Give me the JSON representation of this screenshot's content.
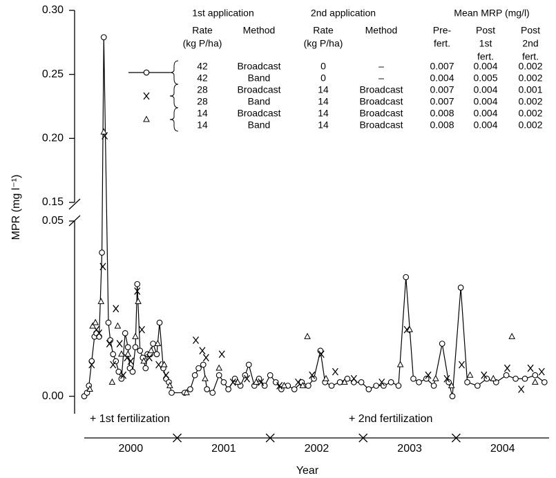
{
  "chart_data": {
    "type": "line",
    "y_label": "MPR (mg l⁻¹)",
    "x_label": "Year",
    "xlim": [
      2000,
      2005
    ],
    "year_segments": [
      "2000",
      "2001",
      "2002",
      "2003",
      "2004"
    ],
    "ylim_segments": [
      [
        -0.005,
        0.05
      ],
      [
        0.15,
        0.3
      ]
    ],
    "yticks": [
      {
        "value": 0.0,
        "label": "0.00"
      },
      {
        "value": 0.05,
        "label": "0.05"
      },
      {
        "value": 0.15,
        "label": "0.15"
      },
      {
        "value": 0.2,
        "label": "0.20"
      },
      {
        "value": 0.25,
        "label": "0.25"
      },
      {
        "value": 0.3,
        "label": "0.30"
      }
    ],
    "annotations": [
      "+ 1st fertilization",
      "+ 2nd fertilization"
    ],
    "legend_table": {
      "groups": [
        "1st application",
        "2nd application",
        "Mean MRP (mg/l)"
      ],
      "columns": [
        [
          "Rate",
          "(kg P/ha)"
        ],
        [
          "Method"
        ],
        [
          "Rate",
          "(kg P/ha)"
        ],
        [
          "Method"
        ],
        [
          "Pre-",
          "fert."
        ],
        [
          "Post",
          "1st",
          "fert."
        ],
        [
          "Post",
          "2nd",
          "fert."
        ]
      ],
      "rows": [
        [
          "42",
          "Broadcast",
          "0",
          "–",
          "0.007",
          "0.004",
          "0.002"
        ],
        [
          "42",
          "Band",
          "0",
          "–",
          "0.004",
          "0.005",
          "0.002"
        ],
        [
          "28",
          "Broadcast",
          "14",
          "Broadcast",
          "0.007",
          "0.004",
          "0.001"
        ],
        [
          "28",
          "Band",
          "14",
          "Broadcast",
          "0.007",
          "0.004",
          "0.002"
        ],
        [
          "14",
          "Broadcast",
          "14",
          "Broadcast",
          "0.008",
          "0.004",
          "0.002"
        ],
        [
          "14",
          "Band",
          "14",
          "Broadcast",
          "0.008",
          "0.004",
          "0.002"
        ]
      ]
    },
    "series": [
      {
        "marker": "circle",
        "line": true,
        "color": "#000000",
        "x": [
          2000.0,
          2000.03,
          2000.05,
          2000.08,
          2000.11,
          2000.13,
          2000.16,
          2000.19,
          2000.21,
          2000.26,
          2000.28,
          2000.31,
          2000.34,
          2000.37,
          2000.4,
          2000.44,
          2000.47,
          2000.49,
          2000.52,
          2000.55,
          2000.57,
          2000.6,
          2000.63,
          2000.66,
          2000.68,
          2000.71,
          2000.74,
          2000.78,
          2000.81,
          2000.85,
          2000.88,
          2000.91,
          2000.94,
          2001.08,
          2001.14,
          2001.19,
          2001.23,
          2001.28,
          2001.32,
          2001.38,
          2001.45,
          2001.5,
          2001.55,
          2001.62,
          2001.68,
          2001.73,
          2001.77,
          2001.83,
          2001.88,
          2001.94,
          2002.0,
          2002.06,
          2002.12,
          2002.19,
          2002.26,
          2002.34,
          2002.41,
          2002.47,
          2002.54,
          2002.59,
          2002.66,
          2002.75,
          2002.83,
          2002.9,
          2002.98,
          2003.06,
          2003.14,
          2003.22,
          2003.3,
          2003.38,
          2003.46,
          2003.54,
          2003.6,
          2003.68,
          2003.76,
          2003.85,
          2003.92,
          2003.96,
          2004.05,
          2004.12,
          2004.23,
          2004.33,
          2004.43,
          2004.54,
          2004.64,
          2004.74,
          2004.85,
          2004.95
        ],
        "values": [
          0.0,
          0.001,
          0.003,
          0.01,
          0.017,
          0.018,
          0.017,
          0.041,
          0.279,
          0.021,
          0.016,
          0.012,
          0.01,
          0.007,
          0.005,
          0.018,
          0.014,
          0.008,
          0.007,
          0.014,
          0.032,
          0.013,
          0.011,
          0.008,
          0.012,
          0.012,
          0.015,
          0.012,
          0.021,
          0.008,
          0.005,
          0.004,
          0.001,
          0.001,
          0.002,
          0.006,
          0.008,
          0.009,
          0.002,
          0.001,
          0.006,
          0.004,
          0.002,
          0.005,
          0.003,
          0.006,
          0.009,
          0.003,
          0.005,
          0.003,
          0.006,
          0.004,
          0.002,
          0.003,
          0.002,
          0.004,
          0.003,
          0.005,
          0.013,
          0.004,
          0.003,
          0.004,
          0.005,
          0.004,
          0.004,
          0.002,
          0.003,
          0.003,
          0.004,
          0.003,
          0.034,
          0.005,
          0.004,
          0.005,
          0.003,
          0.015,
          0.004,
          0.0,
          0.031,
          0.004,
          0.003,
          0.005,
          0.004,
          0.006,
          0.005,
          0.005,
          0.006,
          0.004
        ]
      },
      {
        "marker": "x",
        "color": "#000000",
        "x": [
          2000.08,
          2000.13,
          2000.16,
          2000.2,
          2000.22,
          2000.27,
          2000.31,
          2000.34,
          2000.38,
          2000.42,
          2000.46,
          2000.5,
          2000.57,
          2000.62,
          2000.7,
          2000.8,
          2000.88,
          2001.2,
          2001.27,
          2001.31,
          2001.48,
          2001.6,
          2001.75,
          2001.9,
          2002.1,
          2002.3,
          2002.45,
          2002.55,
          2002.7,
          2002.9,
          2003.2,
          2003.47,
          2003.7,
          2003.9,
          2004.06,
          2004.3,
          2004.55,
          2004.7,
          2004.8,
          2004.92
        ],
        "values": [
          0.009,
          0.019,
          0.018,
          0.037,
          0.202,
          0.015,
          0.009,
          0.025,
          0.015,
          0.006,
          0.011,
          0.01,
          0.03,
          0.019,
          0.011,
          0.009,
          0.006,
          0.016,
          0.013,
          0.011,
          0.012,
          0.004,
          0.005,
          0.004,
          0.003,
          0.004,
          0.006,
          0.012,
          0.007,
          0.005,
          0.004,
          0.019,
          0.006,
          0.005,
          0.009,
          0.006,
          0.008,
          0.002,
          0.008,
          0.007
        ]
      },
      {
        "marker": "triangle",
        "color": "#000000",
        "x": [
          2000.06,
          2000.09,
          2000.12,
          2000.18,
          2000.21,
          2000.3,
          2000.36,
          2000.4,
          2000.47,
          2000.55,
          2000.58,
          2000.64,
          2000.72,
          2000.79,
          2000.86,
          2000.92,
          2001.1,
          2001.3,
          2001.45,
          2001.65,
          2001.85,
          2002.15,
          2002.35,
          2002.4,
          2002.6,
          2002.8,
          2003.4,
          2003.5,
          2003.78,
          2003.95,
          2004.15,
          2004.4,
          2004.6,
          2004.85
        ],
        "values": [
          0.002,
          0.02,
          0.021,
          0.027,
          0.205,
          0.004,
          0.02,
          0.012,
          0.012,
          0.017,
          0.027,
          0.01,
          0.013,
          0.015,
          0.009,
          0.003,
          0.001,
          0.005,
          0.008,
          0.004,
          0.004,
          0.003,
          0.003,
          0.017,
          0.005,
          0.004,
          0.009,
          0.019,
          0.005,
          0.003,
          0.006,
          0.005,
          0.017,
          0.004
        ]
      }
    ]
  }
}
